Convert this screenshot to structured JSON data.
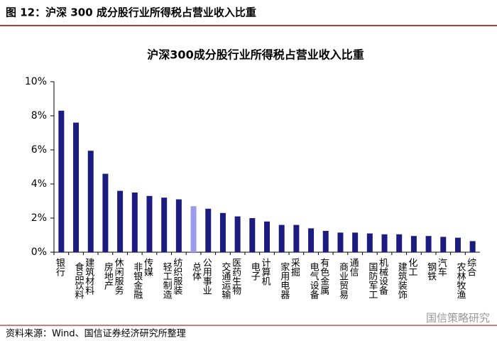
{
  "header": "图 12：沪深 300 成分股行业所得税占营业收入比重",
  "chart_data": {
    "type": "bar",
    "title": "沪深300成分股行业所得税占营业收入比重",
    "categories": [
      "银行",
      "食品饮料",
      "建筑材料",
      "房地产",
      "休闲服务",
      "非银金融",
      "传媒",
      "轻工制造",
      "纺织服装",
      "总体",
      "公用事业",
      "交通运输",
      "医药生物",
      "电子",
      "计算机",
      "家用电器",
      "采掘",
      "电气设备",
      "有色金属",
      "商业贸易",
      "通信",
      "国防军工",
      "机械设备",
      "建筑装饰",
      "化工",
      "钢铁",
      "汽车",
      "农林牧渔",
      "综合"
    ],
    "values": [
      8.3,
      7.6,
      5.95,
      4.6,
      3.6,
      3.5,
      3.3,
      3.2,
      3.1,
      2.7,
      2.55,
      2.3,
      2.1,
      2.0,
      1.8,
      1.6,
      1.6,
      1.4,
      1.25,
      1.15,
      1.15,
      1.1,
      1.05,
      1.05,
      0.95,
      0.95,
      0.9,
      0.85,
      0.65
    ],
    "colors": [
      "#1b1b80",
      "#1b1b80",
      "#1b1b80",
      "#1b1b80",
      "#1b1b80",
      "#1b1b80",
      "#1b1b80",
      "#1b1b80",
      "#1b1b80",
      "#9a9aee",
      "#1b1b80",
      "#1b1b80",
      "#1b1b80",
      "#1b1b80",
      "#1b1b80",
      "#1b1b80",
      "#1b1b80",
      "#1b1b80",
      "#1b1b80",
      "#1b1b80",
      "#1b1b80",
      "#1b1b80",
      "#1b1b80",
      "#1b1b80",
      "#1b1b80",
      "#1b1b80",
      "#1b1b80",
      "#1b1b80",
      "#1b1b80"
    ],
    "ylim": [
      0,
      10
    ],
    "yticks": [
      {
        "value": 0,
        "label": "0%"
      },
      {
        "value": 2,
        "label": "2%"
      },
      {
        "value": 4,
        "label": "4%"
      },
      {
        "value": 6,
        "label": "6%"
      },
      {
        "value": 8,
        "label": "8%"
      },
      {
        "value": 10,
        "label": "10%"
      }
    ]
  },
  "source": "资料来源：Wind、国信证券经济研究所整理",
  "watermark": "国信策略研究"
}
